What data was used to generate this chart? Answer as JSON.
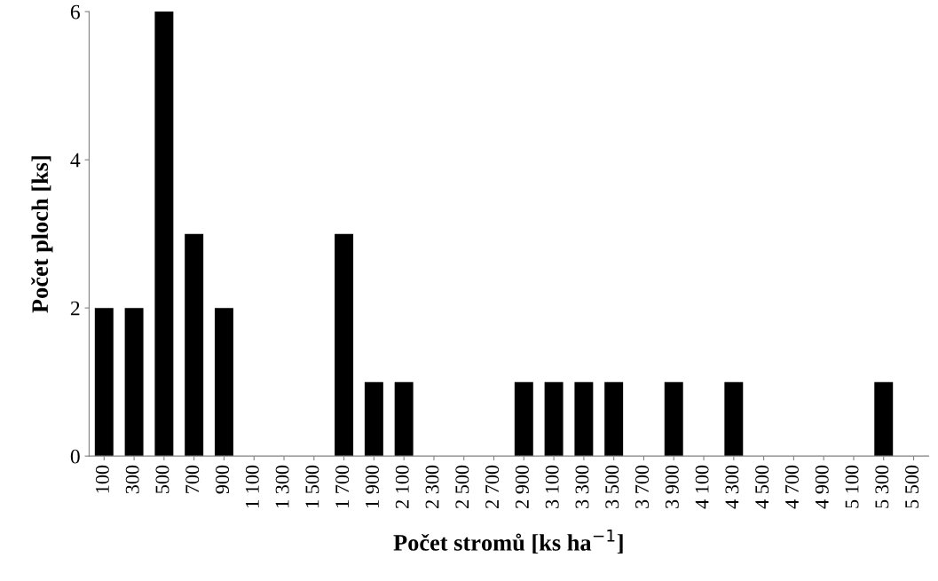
{
  "chart_data": {
    "type": "bar",
    "xlabel": "Počet stromů [ks ha$^{−1}$]",
    "ylabel": "Počet ploch [ks]",
    "categories": [
      "100",
      "300",
      "500",
      "700",
      "900",
      "1 100",
      "1 300",
      "1 500",
      "1 700",
      "1 900",
      "2 100",
      "2 300",
      "2 500",
      "2 700",
      "2 900",
      "3 100",
      "3 300",
      "3 500",
      "3 700",
      "3 900",
      "4 100",
      "4 300",
      "4 500",
      "4 700",
      "4 900",
      "5 100",
      "5 300",
      "5 500"
    ],
    "values": [
      2,
      2,
      6,
      3,
      2,
      0,
      0,
      0,
      3,
      1,
      1,
      0,
      0,
      0,
      1,
      1,
      1,
      1,
      0,
      1,
      0,
      1,
      0,
      0,
      0,
      0,
      1,
      0
    ],
    "color": "#000000",
    "ylim": [
      0,
      6
    ],
    "yticks": [
      0,
      2,
      4,
      6
    ],
    "grid": false,
    "legend": false
  }
}
